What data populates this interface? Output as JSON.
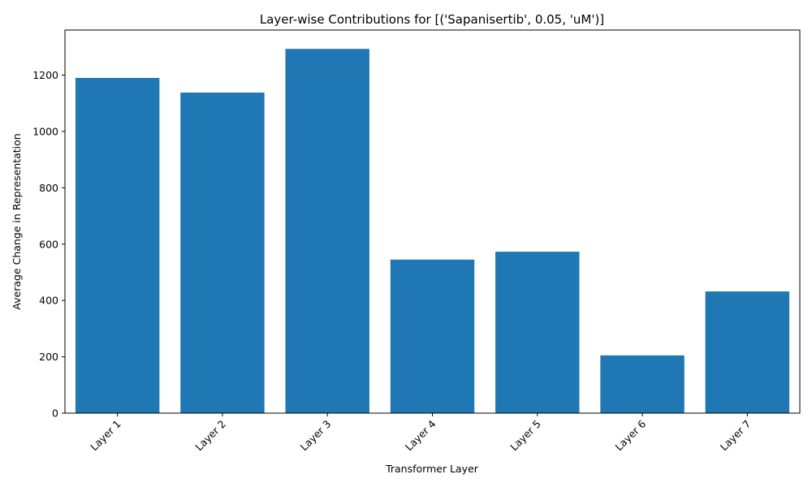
{
  "chart_data": {
    "type": "bar",
    "title": "Layer-wise Contributions for [('Sapanisertib', 0.05, 'uM')]",
    "xlabel": "Transformer Layer",
    "ylabel": "Average Change in Representation",
    "categories": [
      "Layer 1",
      "Layer 2",
      "Layer 3",
      "Layer 4",
      "Layer 5",
      "Layer 6",
      "Layer 7"
    ],
    "values": [
      1190,
      1138,
      1293,
      545,
      573,
      205,
      432
    ],
    "ylim": [
      0,
      1360
    ],
    "yticks": [
      0,
      200,
      400,
      600,
      800,
      1000,
      1200
    ],
    "bar_color": "#1f77b4",
    "grid": false,
    "xtick_rotation": 45
  }
}
